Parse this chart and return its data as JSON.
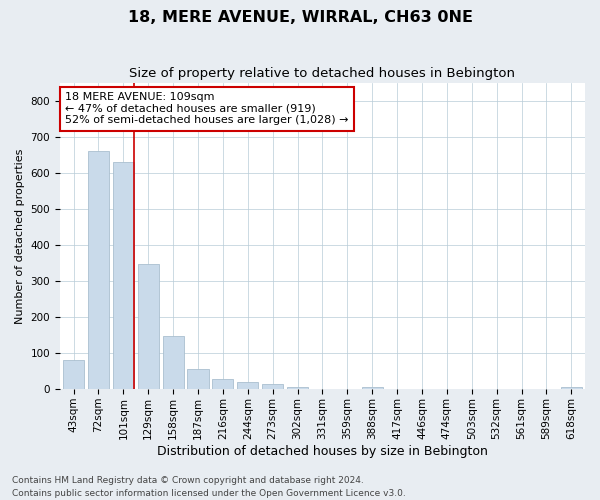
{
  "title": "18, MERE AVENUE, WIRRAL, CH63 0NE",
  "subtitle": "Size of property relative to detached houses in Bebington",
  "xlabel": "Distribution of detached houses by size in Bebington",
  "ylabel": "Number of detached properties",
  "categories": [
    "43sqm",
    "72sqm",
    "101sqm",
    "129sqm",
    "158sqm",
    "187sqm",
    "216sqm",
    "244sqm",
    "273sqm",
    "302sqm",
    "331sqm",
    "359sqm",
    "388sqm",
    "417sqm",
    "446sqm",
    "474sqm",
    "503sqm",
    "532sqm",
    "561sqm",
    "589sqm",
    "618sqm"
  ],
  "values": [
    82,
    662,
    630,
    348,
    148,
    57,
    27,
    20,
    13,
    7,
    0,
    0,
    5,
    0,
    0,
    0,
    0,
    0,
    0,
    0,
    5
  ],
  "bar_color": "#c9daea",
  "bar_edgecolor": "#aabfcf",
  "highlight_index": 2,
  "vline_color": "#cc0000",
  "annotation_text": "18 MERE AVENUE: 109sqm\n← 47% of detached houses are smaller (919)\n52% of semi-detached houses are larger (1,028) →",
  "annotation_box_edgecolor": "#cc0000",
  "ylim": [
    0,
    850
  ],
  "yticks": [
    0,
    100,
    200,
    300,
    400,
    500,
    600,
    700,
    800
  ],
  "title_fontsize": 11.5,
  "subtitle_fontsize": 9.5,
  "xlabel_fontsize": 9,
  "ylabel_fontsize": 8,
  "tick_fontsize": 7.5,
  "annotation_fontsize": 8,
  "footer_line1": "Contains HM Land Registry data © Crown copyright and database right 2024.",
  "footer_line2": "Contains public sector information licensed under the Open Government Licence v3.0.",
  "background_color": "#e8edf2",
  "plot_background_color": "#ffffff",
  "grid_color": "#b8ccd8"
}
